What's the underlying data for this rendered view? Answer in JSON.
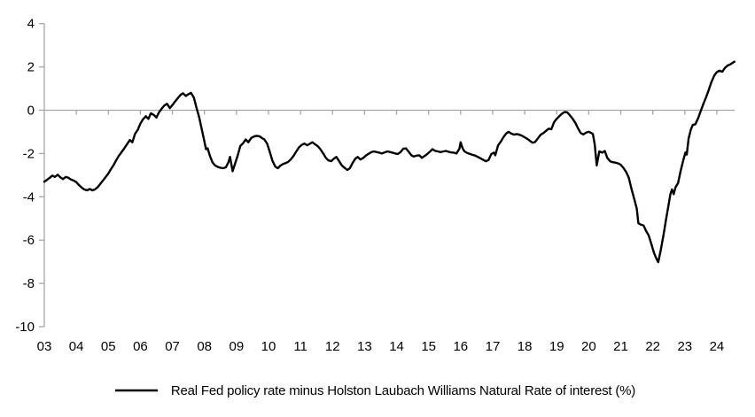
{
  "chart_data": {
    "type": "line",
    "title": "",
    "legend": "Real Fed policy rate minus Holston Laubach Williams Natural Rate of interest (%)",
    "series": [
      {
        "name": "Real Fed policy rate minus Holston Laubach Williams Natural Rate of interest (%)",
        "color": "#000000",
        "points": [
          [
            2003.0,
            -3.3
          ],
          [
            2003.08,
            -3.22
          ],
          [
            2003.17,
            -3.12
          ],
          [
            2003.25,
            -3.02
          ],
          [
            2003.33,
            -3.08
          ],
          [
            2003.42,
            -2.98
          ],
          [
            2003.5,
            -3.1
          ],
          [
            2003.58,
            -3.18
          ],
          [
            2003.67,
            -3.08
          ],
          [
            2003.75,
            -3.12
          ],
          [
            2003.83,
            -3.2
          ],
          [
            2003.92,
            -3.25
          ],
          [
            2004.0,
            -3.32
          ],
          [
            2004.08,
            -3.45
          ],
          [
            2004.17,
            -3.58
          ],
          [
            2004.25,
            -3.66
          ],
          [
            2004.33,
            -3.7
          ],
          [
            2004.42,
            -3.64
          ],
          [
            2004.5,
            -3.7
          ],
          [
            2004.58,
            -3.66
          ],
          [
            2004.67,
            -3.55
          ],
          [
            2004.75,
            -3.4
          ],
          [
            2004.83,
            -3.25
          ],
          [
            2004.92,
            -3.08
          ],
          [
            2005.0,
            -2.92
          ],
          [
            2005.08,
            -2.72
          ],
          [
            2005.17,
            -2.52
          ],
          [
            2005.25,
            -2.3
          ],
          [
            2005.33,
            -2.1
          ],
          [
            2005.42,
            -1.92
          ],
          [
            2005.5,
            -1.76
          ],
          [
            2005.58,
            -1.58
          ],
          [
            2005.67,
            -1.38
          ],
          [
            2005.75,
            -1.48
          ],
          [
            2005.83,
            -1.1
          ],
          [
            2005.92,
            -0.9
          ],
          [
            2006.0,
            -0.62
          ],
          [
            2006.08,
            -0.42
          ],
          [
            2006.17,
            -0.28
          ],
          [
            2006.25,
            -0.4
          ],
          [
            2006.33,
            -0.14
          ],
          [
            2006.42,
            -0.22
          ],
          [
            2006.5,
            -0.34
          ],
          [
            2006.58,
            -0.1
          ],
          [
            2006.67,
            0.08
          ],
          [
            2006.75,
            0.22
          ],
          [
            2006.83,
            0.3
          ],
          [
            2006.92,
            0.1
          ],
          [
            2007.0,
            0.24
          ],
          [
            2007.08,
            0.4
          ],
          [
            2007.17,
            0.56
          ],
          [
            2007.25,
            0.7
          ],
          [
            2007.33,
            0.78
          ],
          [
            2007.42,
            0.66
          ],
          [
            2007.5,
            0.74
          ],
          [
            2007.58,
            0.8
          ],
          [
            2007.67,
            0.58
          ],
          [
            2007.75,
            0.12
          ],
          [
            2007.83,
            -0.3
          ],
          [
            2007.92,
            -0.9
          ],
          [
            2008.0,
            -1.45
          ],
          [
            2008.05,
            -1.8
          ],
          [
            2008.1,
            -1.76
          ],
          [
            2008.17,
            -2.1
          ],
          [
            2008.25,
            -2.4
          ],
          [
            2008.33,
            -2.55
          ],
          [
            2008.42,
            -2.62
          ],
          [
            2008.5,
            -2.66
          ],
          [
            2008.58,
            -2.68
          ],
          [
            2008.67,
            -2.64
          ],
          [
            2008.75,
            -2.4
          ],
          [
            2008.8,
            -2.15
          ],
          [
            2008.88,
            -2.82
          ],
          [
            2008.96,
            -2.45
          ],
          [
            2009.04,
            -2.08
          ],
          [
            2009.12,
            -1.65
          ],
          [
            2009.21,
            -1.52
          ],
          [
            2009.29,
            -1.35
          ],
          [
            2009.37,
            -1.48
          ],
          [
            2009.46,
            -1.28
          ],
          [
            2009.54,
            -1.22
          ],
          [
            2009.62,
            -1.18
          ],
          [
            2009.71,
            -1.2
          ],
          [
            2009.79,
            -1.28
          ],
          [
            2009.87,
            -1.35
          ],
          [
            2009.96,
            -1.55
          ],
          [
            2010.04,
            -1.92
          ],
          [
            2010.12,
            -2.32
          ],
          [
            2010.21,
            -2.6
          ],
          [
            2010.29,
            -2.68
          ],
          [
            2010.37,
            -2.56
          ],
          [
            2010.46,
            -2.48
          ],
          [
            2010.54,
            -2.44
          ],
          [
            2010.62,
            -2.38
          ],
          [
            2010.71,
            -2.25
          ],
          [
            2010.79,
            -2.1
          ],
          [
            2010.87,
            -1.9
          ],
          [
            2010.96,
            -1.7
          ],
          [
            2011.04,
            -1.6
          ],
          [
            2011.12,
            -1.54
          ],
          [
            2011.21,
            -1.62
          ],
          [
            2011.29,
            -1.55
          ],
          [
            2011.37,
            -1.48
          ],
          [
            2011.46,
            -1.58
          ],
          [
            2011.54,
            -1.66
          ],
          [
            2011.62,
            -1.8
          ],
          [
            2011.71,
            -2.0
          ],
          [
            2011.79,
            -2.2
          ],
          [
            2011.87,
            -2.32
          ],
          [
            2011.96,
            -2.35
          ],
          [
            2012.04,
            -2.24
          ],
          [
            2012.12,
            -2.16
          ],
          [
            2012.21,
            -2.36
          ],
          [
            2012.29,
            -2.55
          ],
          [
            2012.37,
            -2.65
          ],
          [
            2012.46,
            -2.76
          ],
          [
            2012.54,
            -2.68
          ],
          [
            2012.62,
            -2.45
          ],
          [
            2012.71,
            -2.24
          ],
          [
            2012.79,
            -2.16
          ],
          [
            2012.87,
            -2.28
          ],
          [
            2012.96,
            -2.2
          ],
          [
            2013.04,
            -2.1
          ],
          [
            2013.12,
            -2.02
          ],
          [
            2013.21,
            -1.94
          ],
          [
            2013.29,
            -1.9
          ],
          [
            2013.37,
            -1.93
          ],
          [
            2013.46,
            -1.96
          ],
          [
            2013.54,
            -2.0
          ],
          [
            2013.62,
            -1.95
          ],
          [
            2013.71,
            -1.9
          ],
          [
            2013.79,
            -1.93
          ],
          [
            2013.87,
            -1.96
          ],
          [
            2013.96,
            -2.0
          ],
          [
            2014.04,
            -2.02
          ],
          [
            2014.12,
            -1.94
          ],
          [
            2014.21,
            -1.78
          ],
          [
            2014.29,
            -1.76
          ],
          [
            2014.37,
            -1.9
          ],
          [
            2014.46,
            -2.08
          ],
          [
            2014.54,
            -2.14
          ],
          [
            2014.62,
            -2.1
          ],
          [
            2014.71,
            -2.08
          ],
          [
            2014.79,
            -2.2
          ],
          [
            2014.87,
            -2.12
          ],
          [
            2014.96,
            -2.02
          ],
          [
            2015.04,
            -1.92
          ],
          [
            2015.12,
            -1.8
          ],
          [
            2015.21,
            -1.88
          ],
          [
            2015.29,
            -1.9
          ],
          [
            2015.37,
            -1.94
          ],
          [
            2015.46,
            -1.9
          ],
          [
            2015.54,
            -1.88
          ],
          [
            2015.62,
            -1.92
          ],
          [
            2015.71,
            -1.95
          ],
          [
            2015.79,
            -1.96
          ],
          [
            2015.87,
            -2.0
          ],
          [
            2015.96,
            -1.78
          ],
          [
            2016.0,
            -1.48
          ],
          [
            2016.06,
            -1.76
          ],
          [
            2016.12,
            -1.9
          ],
          [
            2016.21,
            -1.98
          ],
          [
            2016.29,
            -2.02
          ],
          [
            2016.37,
            -2.06
          ],
          [
            2016.46,
            -2.1
          ],
          [
            2016.54,
            -2.16
          ],
          [
            2016.62,
            -2.22
          ],
          [
            2016.71,
            -2.3
          ],
          [
            2016.79,
            -2.36
          ],
          [
            2016.87,
            -2.3
          ],
          [
            2016.96,
            -2.02
          ],
          [
            2017.04,
            -1.96
          ],
          [
            2017.08,
            -2.08
          ],
          [
            2017.17,
            -1.62
          ],
          [
            2017.25,
            -1.46
          ],
          [
            2017.33,
            -1.26
          ],
          [
            2017.42,
            -1.08
          ],
          [
            2017.5,
            -1.0
          ],
          [
            2017.58,
            -1.08
          ],
          [
            2017.67,
            -1.13
          ],
          [
            2017.75,
            -1.1
          ],
          [
            2017.83,
            -1.13
          ],
          [
            2017.92,
            -1.18
          ],
          [
            2018.0,
            -1.25
          ],
          [
            2018.08,
            -1.32
          ],
          [
            2018.17,
            -1.42
          ],
          [
            2018.25,
            -1.5
          ],
          [
            2018.33,
            -1.46
          ],
          [
            2018.42,
            -1.28
          ],
          [
            2018.5,
            -1.13
          ],
          [
            2018.58,
            -1.06
          ],
          [
            2018.67,
            -0.95
          ],
          [
            2018.75,
            -0.85
          ],
          [
            2018.83,
            -0.88
          ],
          [
            2018.92,
            -0.55
          ],
          [
            2019.0,
            -0.4
          ],
          [
            2019.08,
            -0.28
          ],
          [
            2019.17,
            -0.15
          ],
          [
            2019.25,
            -0.08
          ],
          [
            2019.33,
            -0.1
          ],
          [
            2019.42,
            -0.25
          ],
          [
            2019.5,
            -0.4
          ],
          [
            2019.58,
            -0.58
          ],
          [
            2019.67,
            -0.85
          ],
          [
            2019.75,
            -1.05
          ],
          [
            2019.83,
            -1.12
          ],
          [
            2019.92,
            -1.03
          ],
          [
            2020.0,
            -1.0
          ],
          [
            2020.08,
            -1.05
          ],
          [
            2020.13,
            -1.1
          ],
          [
            2020.19,
            -1.6
          ],
          [
            2020.25,
            -2.55
          ],
          [
            2020.33,
            -1.9
          ],
          [
            2020.42,
            -1.96
          ],
          [
            2020.5,
            -1.88
          ],
          [
            2020.58,
            -2.2
          ],
          [
            2020.67,
            -2.36
          ],
          [
            2020.75,
            -2.4
          ],
          [
            2020.83,
            -2.42
          ],
          [
            2020.92,
            -2.46
          ],
          [
            2021.0,
            -2.52
          ],
          [
            2021.08,
            -2.66
          ],
          [
            2021.17,
            -2.86
          ],
          [
            2021.25,
            -3.12
          ],
          [
            2021.33,
            -3.6
          ],
          [
            2021.42,
            -4.1
          ],
          [
            2021.5,
            -4.55
          ],
          [
            2021.55,
            -5.22
          ],
          [
            2021.62,
            -5.28
          ],
          [
            2021.71,
            -5.32
          ],
          [
            2021.79,
            -5.58
          ],
          [
            2021.87,
            -5.78
          ],
          [
            2021.96,
            -6.2
          ],
          [
            2022.04,
            -6.6
          ],
          [
            2022.12,
            -6.88
          ],
          [
            2022.17,
            -7.02
          ],
          [
            2022.25,
            -6.45
          ],
          [
            2022.33,
            -5.8
          ],
          [
            2022.42,
            -5.0
          ],
          [
            2022.5,
            -4.32
          ],
          [
            2022.55,
            -3.88
          ],
          [
            2022.6,
            -3.66
          ],
          [
            2022.65,
            -3.88
          ],
          [
            2022.71,
            -3.56
          ],
          [
            2022.79,
            -3.36
          ],
          [
            2022.87,
            -2.8
          ],
          [
            2022.95,
            -2.32
          ],
          [
            2023.02,
            -1.95
          ],
          [
            2023.06,
            -2.05
          ],
          [
            2023.12,
            -1.3
          ],
          [
            2023.19,
            -0.88
          ],
          [
            2023.25,
            -0.68
          ],
          [
            2023.33,
            -0.65
          ],
          [
            2023.42,
            -0.35
          ],
          [
            2023.5,
            -0.02
          ],
          [
            2023.58,
            0.3
          ],
          [
            2023.67,
            0.62
          ],
          [
            2023.75,
            0.95
          ],
          [
            2023.83,
            1.3
          ],
          [
            2023.92,
            1.6
          ],
          [
            2024.0,
            1.76
          ],
          [
            2024.08,
            1.83
          ],
          [
            2024.17,
            1.78
          ],
          [
            2024.25,
            1.95
          ],
          [
            2024.33,
            2.06
          ],
          [
            2024.42,
            2.12
          ],
          [
            2024.5,
            2.2
          ],
          [
            2024.55,
            2.24
          ]
        ]
      }
    ],
    "x_ticks": {
      "labels": [
        "03",
        "04",
        "05",
        "06",
        "07",
        "08",
        "09",
        "10",
        "11",
        "12",
        "13",
        "14",
        "15",
        "16",
        "17",
        "18",
        "19",
        "20",
        "21",
        "22",
        "23",
        "24"
      ],
      "years": [
        2003,
        2004,
        2005,
        2006,
        2007,
        2008,
        2009,
        2010,
        2011,
        2012,
        2013,
        2014,
        2015,
        2016,
        2017,
        2018,
        2019,
        2020,
        2021,
        2022,
        2023,
        2024
      ]
    },
    "y_ticks": [
      "4",
      "2",
      "0",
      "-2",
      "-4",
      "-6",
      "-8",
      "-10"
    ],
    "y_tick_values": [
      4,
      2,
      0,
      -2,
      -4,
      -6,
      -8,
      -10
    ],
    "ylim": [
      -10,
      4
    ],
    "xlim": [
      2003,
      2024.6
    ],
    "grid": "zero-line-only",
    "legend_position": "bottom-center",
    "colors": {
      "line": "#000000",
      "axis": "#a6a6a6",
      "text": "#000000",
      "background": "#ffffff"
    }
  }
}
